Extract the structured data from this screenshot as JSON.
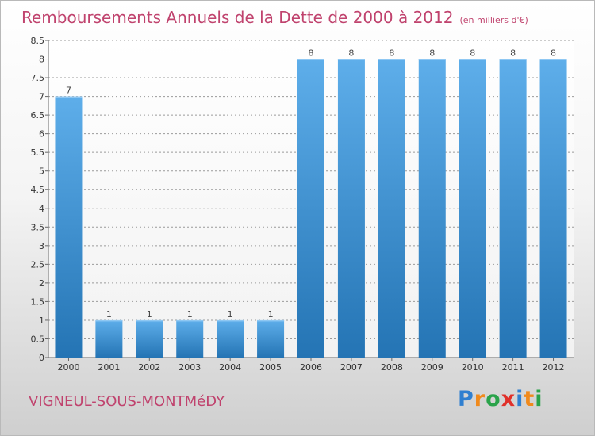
{
  "title": "Remboursements Annuels de la Dette de 2000 à 2012",
  "subtitle": "(en milliers d'€)",
  "commune": "VIGNEUL-SOUS-MONTMéDY",
  "logo": {
    "text": "Proxiti",
    "letters": [
      {
        "ch": "P",
        "color": "#2f7fd0"
      },
      {
        "ch": "r",
        "color": "#f08a1c"
      },
      {
        "ch": "o",
        "color": "#2aa34a"
      },
      {
        "ch": "x",
        "color": "#e0302a"
      },
      {
        "ch": "i",
        "color": "#2f7fd0"
      },
      {
        "ch": "t",
        "color": "#f08a1c"
      },
      {
        "ch": "i",
        "color": "#2aa34a"
      }
    ]
  },
  "colors": {
    "accent": "#c0436e",
    "bar_light": "#5aa8e6",
    "bar_dark": "#2a78b8",
    "grid": "#9a9a9a"
  },
  "chart_data": {
    "type": "bar",
    "title": "Remboursements Annuels de la Dette de 2000 à 2012",
    "subtitle": "(en milliers d'€)",
    "categories": [
      "2000",
      "2001",
      "2002",
      "2003",
      "2004",
      "2005",
      "2006",
      "2007",
      "2008",
      "2009",
      "2010",
      "2011",
      "2012"
    ],
    "values": [
      7,
      1,
      1,
      1,
      1,
      1,
      8,
      8,
      8,
      8,
      8,
      8,
      8
    ],
    "value_labels": [
      "7",
      "1",
      "1",
      "1",
      "1",
      "1",
      "8",
      "8",
      "8",
      "8",
      "8",
      "8",
      "8"
    ],
    "ylim": [
      0,
      8.5
    ],
    "yticks": [
      "0",
      "0.5",
      "1",
      "1.5",
      "2",
      "2.5",
      "3",
      "3.5",
      "4",
      "4.5",
      "5",
      "5.5",
      "6",
      "6.5",
      "7",
      "7.5",
      "8",
      "8.5"
    ],
    "grid": true,
    "legend": "none"
  }
}
